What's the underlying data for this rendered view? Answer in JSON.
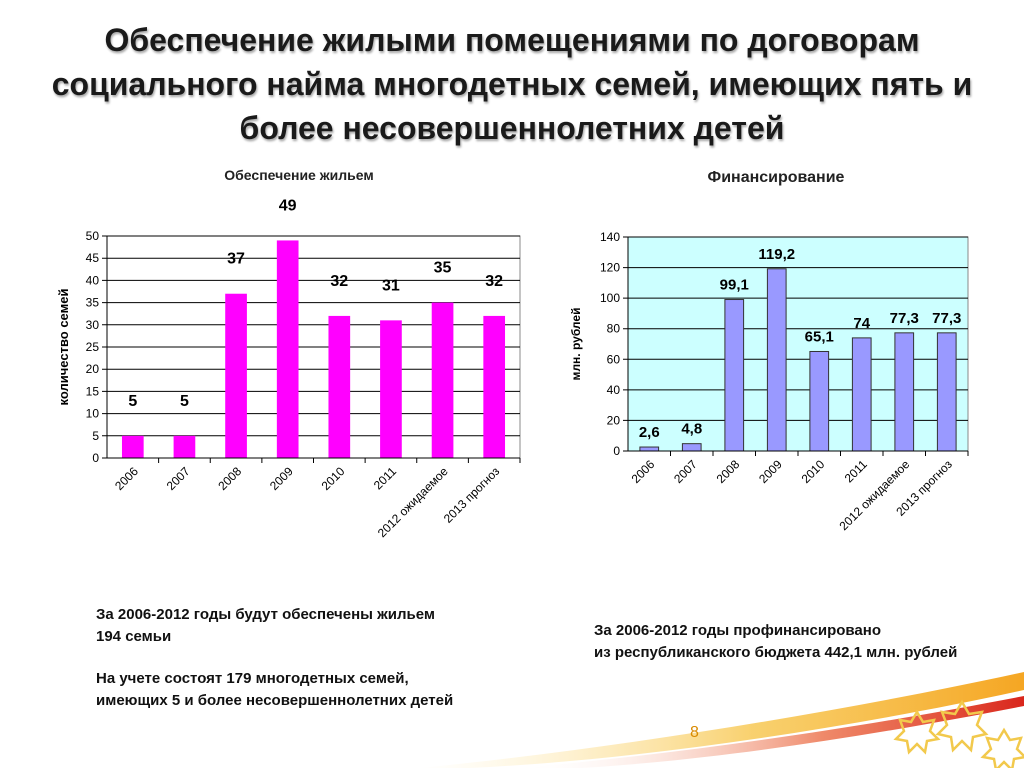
{
  "slide": {
    "title_lines": [
      "Обеспечение жилыми помещениями по договорам",
      "социального найма многодетных семей, имеющих пять и",
      "более несовершеннолетних детей"
    ],
    "page_number": "8"
  },
  "chart_data": [
    {
      "type": "bar",
      "title": "Обеспечение жильем",
      "ylabel": "количество семей",
      "xlabel": "",
      "categories": [
        "2006",
        "2007",
        "2008",
        "2009",
        "2010",
        "2011",
        "2012 ожидаемое",
        "2013 прогноз"
      ],
      "values": [
        5,
        5,
        37,
        49,
        32,
        31,
        35,
        32
      ],
      "data_labels": [
        "5",
        "5",
        "37",
        "49",
        "32",
        "31",
        "35",
        "32"
      ],
      "ylim": [
        0,
        50
      ],
      "yticks": [
        0,
        5,
        10,
        15,
        20,
        25,
        30,
        35,
        40,
        45,
        50
      ],
      "grid": true,
      "legend": "none",
      "bar_color": "#ff00ff",
      "plot_background": "#ffffff"
    },
    {
      "type": "bar",
      "title": "Финансирование",
      "ylabel": "млн. рублей",
      "xlabel": "",
      "categories": [
        "2006",
        "2007",
        "2008",
        "2009",
        "2010",
        "2011",
        "2012 ожидаемое",
        "2013 прогноз"
      ],
      "values": [
        2.6,
        4.8,
        99.1,
        119.2,
        65.1,
        74,
        77.3,
        77.3
      ],
      "data_labels": [
        "2,6",
        "4,8",
        "99,1",
        "119,2",
        "65,1",
        "74",
        "77,3",
        "77,3"
      ],
      "ylim": [
        0,
        140
      ],
      "yticks": [
        0,
        20,
        40,
        60,
        80,
        100,
        120,
        140
      ],
      "grid": true,
      "legend": "none",
      "bar_color": "#9999ff",
      "plot_background": "#ccffff"
    }
  ],
  "captions": {
    "left": {
      "paragraph1": [
        "За 2006-2012 годы будут обеспечены жильем",
        "194 семьи"
      ],
      "paragraph2": [
        "На учете состоят 179 многодетных семей,",
        "имеющих 5 и более несовершеннолетних детей"
      ]
    },
    "right": {
      "paragraph1": [
        "За 2006-2012 годы профинансировано",
        "из республиканского бюджета 442,1 млн. рублей"
      ]
    }
  },
  "colors": {
    "title_text": "#1a1a1a",
    "decor_orange": "#f5a623",
    "decor_red": "#d9261c",
    "page_number": "#d98a00"
  }
}
